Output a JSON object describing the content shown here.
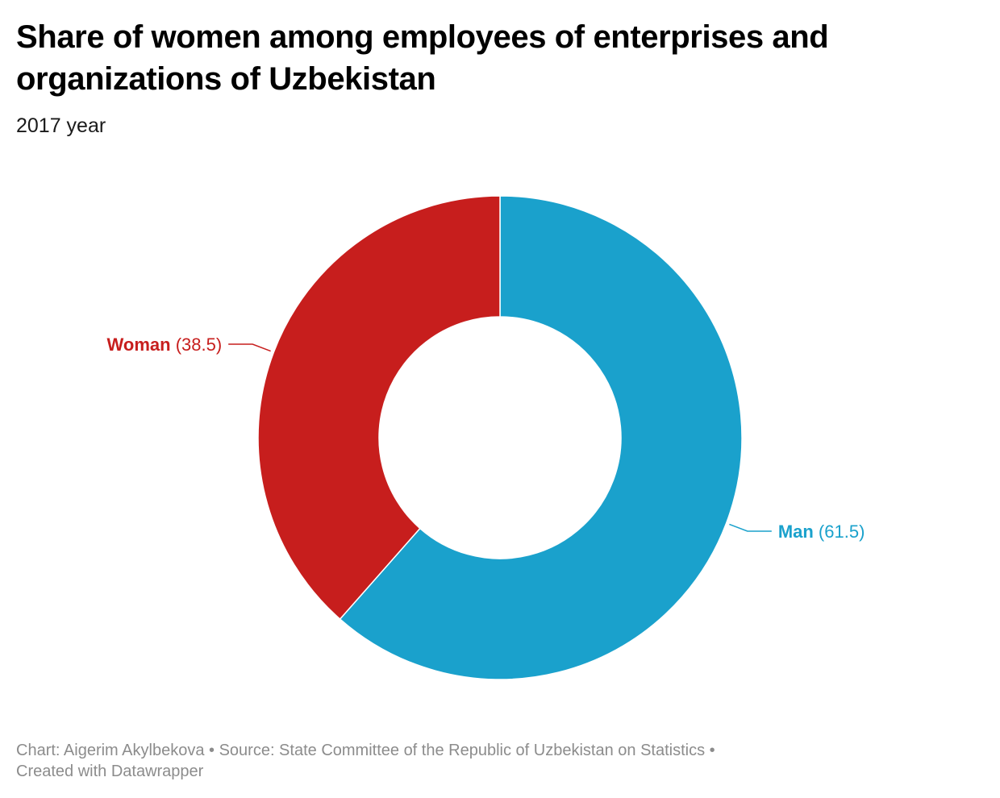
{
  "header": {
    "title": "Share of women among employees of enterprises and organizations of Uzbekistan",
    "subtitle": "2017 year"
  },
  "chart_data": {
    "type": "pie",
    "variant": "donut",
    "title": "Share of women among employees of enterprises and organizations of Uzbekistan",
    "subtitle": "2017 year",
    "slices": [
      {
        "label": "Man",
        "value": 61.5,
        "color": "#1aa1cc"
      },
      {
        "label": "Woman",
        "value": 38.5,
        "color": "#c71e1d"
      }
    ],
    "label_display": {
      "Man": "(61.5)",
      "Woman": "(38.5)"
    }
  },
  "footer": {
    "chart_credit": "Chart: Aigerim Akylbekova",
    "separator": "•",
    "source": "Source: State Committee of the Republic of Uzbekistan on Statistics",
    "created_with": "Created with Datawrapper"
  }
}
